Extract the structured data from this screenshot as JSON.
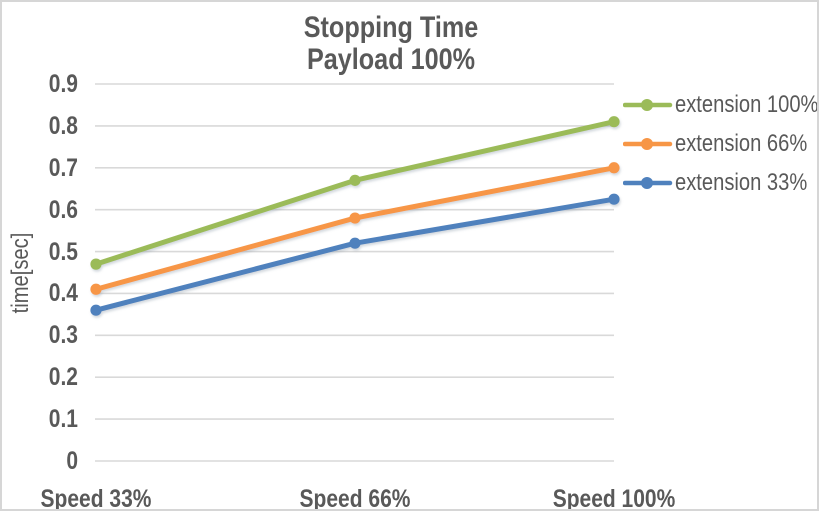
{
  "chart": {
    "title": "Stopping Time",
    "subtitle": "Payload 100%"
  },
  "chart_data": {
    "type": "line",
    "title": "Stopping Time",
    "subtitle": "Payload 100%",
    "categories": [
      "Speed 33%",
      "Speed 66%",
      "Speed 100%"
    ],
    "series": [
      {
        "name": "extension 100%",
        "color": "#9BBB59",
        "values": [
          0.47,
          0.67,
          0.81
        ]
      },
      {
        "name": "extension 66%",
        "color": "#F79646",
        "values": [
          0.41,
          0.58,
          0.7
        ]
      },
      {
        "name": "extension 33%",
        "color": "#4F81BD",
        "values": [
          0.36,
          0.52,
          0.625
        ]
      }
    ],
    "xlabel": "",
    "ylabel": "time[sec]",
    "ylim": [
      0,
      0.9
    ],
    "yticks": [
      0,
      0.1,
      0.2,
      0.3,
      0.4,
      0.5,
      0.6,
      0.7,
      0.8,
      0.9
    ],
    "grid": true,
    "legend_position": "right",
    "marker": "circle"
  },
  "colors": {
    "grid": "#D9D9D9",
    "text": "#595959",
    "background": "#FFFFFF",
    "frame_border": "#D6D6D6",
    "line_shadow": "#8A99A8"
  }
}
